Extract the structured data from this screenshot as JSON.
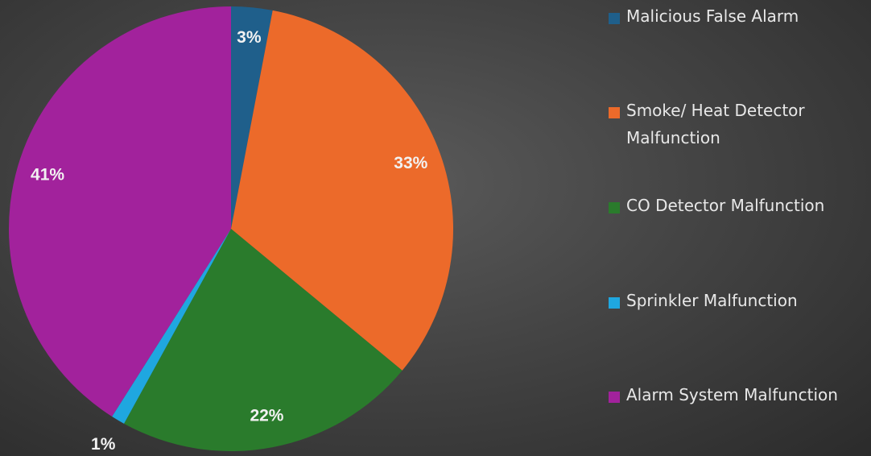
{
  "chart_data": {
    "type": "pie",
    "categories": [
      "Malicious False Alarm",
      "Smoke/ Heat Detector Malfunction",
      "CO Detector Malfunction",
      "Sprinkler Malfunction",
      "Alarm System Malfunction"
    ],
    "values": [
      3,
      33,
      22,
      1,
      41
    ],
    "value_labels": [
      "3%",
      "33%",
      "22%",
      "1%",
      "41%"
    ],
    "colors": [
      "#1f5f8b",
      "#ec6a2a",
      "#2a7b2c",
      "#1fa7e0",
      "#a2229c"
    ],
    "legend": "right"
  }
}
